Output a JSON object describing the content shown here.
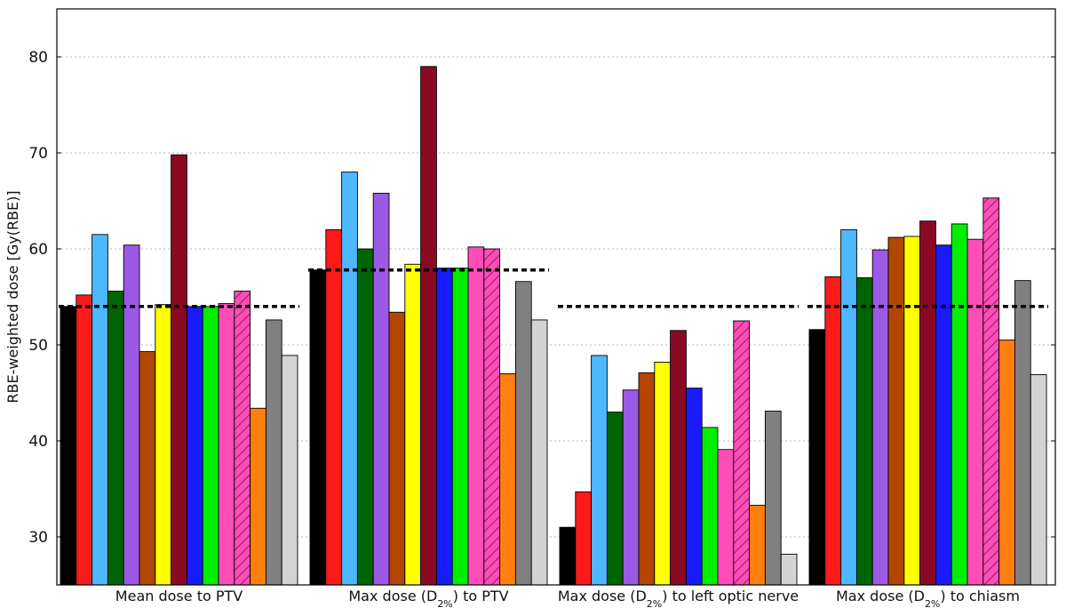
{
  "chart_data": {
    "type": "bar",
    "title": "",
    "xlabel": "",
    "ylabel": "RBE-weighted dose [Gy(RBE)]",
    "ylim": [
      25,
      85
    ],
    "yticks": [
      30,
      40,
      50,
      60,
      70,
      80
    ],
    "grid": true,
    "legend": "none",
    "categories": [
      {
        "label_pre": "Mean dose to PTV",
        "sub": "",
        "label_post": ""
      },
      {
        "label_pre": "Max dose (D",
        "sub": "2%",
        "label_post": ") to PTV"
      },
      {
        "label_pre": "Max dose (D",
        "sub": "2%",
        "label_post": ") to left optic nerve"
      },
      {
        "label_pre": "Max dose (D",
        "sub": "2%",
        "label_post": ") to chiasm"
      }
    ],
    "reference_lines": [
      54,
      57.8,
      54,
      54
    ],
    "series": [
      {
        "color": "#000000",
        "hatched": false,
        "values": [
          54.0,
          57.8,
          31.0,
          51.6
        ]
      },
      {
        "color": "#ff1a1a",
        "hatched": false,
        "values": [
          55.2,
          62.0,
          34.7,
          57.1
        ]
      },
      {
        "color": "#4db8ff",
        "hatched": false,
        "values": [
          61.5,
          68.0,
          48.9,
          62.0
        ]
      },
      {
        "color": "#006400",
        "hatched": false,
        "values": [
          55.6,
          60.0,
          43.0,
          57.0
        ]
      },
      {
        "color": "#9b59e6",
        "hatched": false,
        "values": [
          60.4,
          65.8,
          45.3,
          59.9
        ]
      },
      {
        "color": "#b34700",
        "hatched": false,
        "values": [
          49.3,
          53.4,
          47.1,
          61.2
        ]
      },
      {
        "color": "#ffff00",
        "hatched": false,
        "values": [
          54.2,
          58.4,
          48.2,
          61.3
        ]
      },
      {
        "color": "#8b0a23",
        "hatched": false,
        "values": [
          69.8,
          79.0,
          51.5,
          62.9
        ]
      },
      {
        "color": "#1a1aff",
        "hatched": false,
        "values": [
          54.0,
          58.0,
          45.5,
          60.4
        ]
      },
      {
        "color": "#00ee00",
        "hatched": false,
        "values": [
          54.0,
          58.0,
          41.4,
          62.6
        ]
      },
      {
        "color": "#ff4db8",
        "hatched": false,
        "values": [
          54.3,
          60.2,
          39.1,
          61.0
        ]
      },
      {
        "color": "#ff4db8",
        "hatched": true,
        "values": [
          55.6,
          60.0,
          52.5,
          65.3
        ]
      },
      {
        "color": "#ff7f0e",
        "hatched": false,
        "values": [
          43.4,
          47.0,
          33.3,
          50.5
        ]
      },
      {
        "color": "#808080",
        "hatched": false,
        "values": [
          52.6,
          56.6,
          43.1,
          56.7
        ]
      },
      {
        "color": "#d3d3d3",
        "hatched": false,
        "values": [
          48.9,
          52.6,
          28.2,
          46.9
        ]
      }
    ]
  }
}
